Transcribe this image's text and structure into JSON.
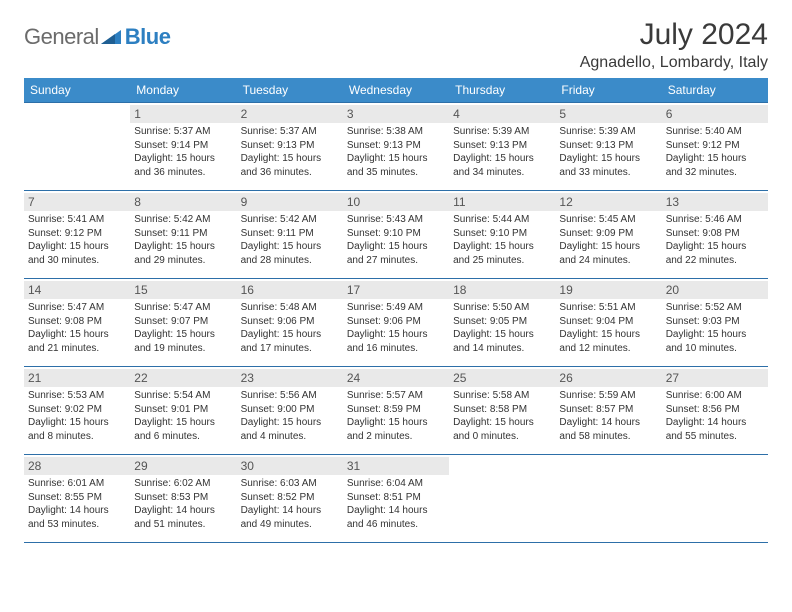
{
  "logo": {
    "text1": "General",
    "text2": "Blue"
  },
  "title": "July 2024",
  "location": "Agnadello, Lombardy, Italy",
  "colors": {
    "header_bg": "#3b8bc9",
    "header_text": "#ffffff",
    "border": "#2d6fa8",
    "daynum_bg": "#e9e9e9",
    "body_text": "#333333",
    "logo_gray": "#6b6b6b",
    "logo_blue": "#2d7fc1"
  },
  "weekdays": [
    "Sunday",
    "Monday",
    "Tuesday",
    "Wednesday",
    "Thursday",
    "Friday",
    "Saturday"
  ],
  "grid": [
    [
      {
        "day": "",
        "sunrise": "",
        "sunset": "",
        "daylight": ""
      },
      {
        "day": "1",
        "sunrise": "Sunrise: 5:37 AM",
        "sunset": "Sunset: 9:14 PM",
        "daylight": "Daylight: 15 hours and 36 minutes."
      },
      {
        "day": "2",
        "sunrise": "Sunrise: 5:37 AM",
        "sunset": "Sunset: 9:13 PM",
        "daylight": "Daylight: 15 hours and 36 minutes."
      },
      {
        "day": "3",
        "sunrise": "Sunrise: 5:38 AM",
        "sunset": "Sunset: 9:13 PM",
        "daylight": "Daylight: 15 hours and 35 minutes."
      },
      {
        "day": "4",
        "sunrise": "Sunrise: 5:39 AM",
        "sunset": "Sunset: 9:13 PM",
        "daylight": "Daylight: 15 hours and 34 minutes."
      },
      {
        "day": "5",
        "sunrise": "Sunrise: 5:39 AM",
        "sunset": "Sunset: 9:13 PM",
        "daylight": "Daylight: 15 hours and 33 minutes."
      },
      {
        "day": "6",
        "sunrise": "Sunrise: 5:40 AM",
        "sunset": "Sunset: 9:12 PM",
        "daylight": "Daylight: 15 hours and 32 minutes."
      }
    ],
    [
      {
        "day": "7",
        "sunrise": "Sunrise: 5:41 AM",
        "sunset": "Sunset: 9:12 PM",
        "daylight": "Daylight: 15 hours and 30 minutes."
      },
      {
        "day": "8",
        "sunrise": "Sunrise: 5:42 AM",
        "sunset": "Sunset: 9:11 PM",
        "daylight": "Daylight: 15 hours and 29 minutes."
      },
      {
        "day": "9",
        "sunrise": "Sunrise: 5:42 AM",
        "sunset": "Sunset: 9:11 PM",
        "daylight": "Daylight: 15 hours and 28 minutes."
      },
      {
        "day": "10",
        "sunrise": "Sunrise: 5:43 AM",
        "sunset": "Sunset: 9:10 PM",
        "daylight": "Daylight: 15 hours and 27 minutes."
      },
      {
        "day": "11",
        "sunrise": "Sunrise: 5:44 AM",
        "sunset": "Sunset: 9:10 PM",
        "daylight": "Daylight: 15 hours and 25 minutes."
      },
      {
        "day": "12",
        "sunrise": "Sunrise: 5:45 AM",
        "sunset": "Sunset: 9:09 PM",
        "daylight": "Daylight: 15 hours and 24 minutes."
      },
      {
        "day": "13",
        "sunrise": "Sunrise: 5:46 AM",
        "sunset": "Sunset: 9:08 PM",
        "daylight": "Daylight: 15 hours and 22 minutes."
      }
    ],
    [
      {
        "day": "14",
        "sunrise": "Sunrise: 5:47 AM",
        "sunset": "Sunset: 9:08 PM",
        "daylight": "Daylight: 15 hours and 21 minutes."
      },
      {
        "day": "15",
        "sunrise": "Sunrise: 5:47 AM",
        "sunset": "Sunset: 9:07 PM",
        "daylight": "Daylight: 15 hours and 19 minutes."
      },
      {
        "day": "16",
        "sunrise": "Sunrise: 5:48 AM",
        "sunset": "Sunset: 9:06 PM",
        "daylight": "Daylight: 15 hours and 17 minutes."
      },
      {
        "day": "17",
        "sunrise": "Sunrise: 5:49 AM",
        "sunset": "Sunset: 9:06 PM",
        "daylight": "Daylight: 15 hours and 16 minutes."
      },
      {
        "day": "18",
        "sunrise": "Sunrise: 5:50 AM",
        "sunset": "Sunset: 9:05 PM",
        "daylight": "Daylight: 15 hours and 14 minutes."
      },
      {
        "day": "19",
        "sunrise": "Sunrise: 5:51 AM",
        "sunset": "Sunset: 9:04 PM",
        "daylight": "Daylight: 15 hours and 12 minutes."
      },
      {
        "day": "20",
        "sunrise": "Sunrise: 5:52 AM",
        "sunset": "Sunset: 9:03 PM",
        "daylight": "Daylight: 15 hours and 10 minutes."
      }
    ],
    [
      {
        "day": "21",
        "sunrise": "Sunrise: 5:53 AM",
        "sunset": "Sunset: 9:02 PM",
        "daylight": "Daylight: 15 hours and 8 minutes."
      },
      {
        "day": "22",
        "sunrise": "Sunrise: 5:54 AM",
        "sunset": "Sunset: 9:01 PM",
        "daylight": "Daylight: 15 hours and 6 minutes."
      },
      {
        "day": "23",
        "sunrise": "Sunrise: 5:56 AM",
        "sunset": "Sunset: 9:00 PM",
        "daylight": "Daylight: 15 hours and 4 minutes."
      },
      {
        "day": "24",
        "sunrise": "Sunrise: 5:57 AM",
        "sunset": "Sunset: 8:59 PM",
        "daylight": "Daylight: 15 hours and 2 minutes."
      },
      {
        "day": "25",
        "sunrise": "Sunrise: 5:58 AM",
        "sunset": "Sunset: 8:58 PM",
        "daylight": "Daylight: 15 hours and 0 minutes."
      },
      {
        "day": "26",
        "sunrise": "Sunrise: 5:59 AM",
        "sunset": "Sunset: 8:57 PM",
        "daylight": "Daylight: 14 hours and 58 minutes."
      },
      {
        "day": "27",
        "sunrise": "Sunrise: 6:00 AM",
        "sunset": "Sunset: 8:56 PM",
        "daylight": "Daylight: 14 hours and 55 minutes."
      }
    ],
    [
      {
        "day": "28",
        "sunrise": "Sunrise: 6:01 AM",
        "sunset": "Sunset: 8:55 PM",
        "daylight": "Daylight: 14 hours and 53 minutes."
      },
      {
        "day": "29",
        "sunrise": "Sunrise: 6:02 AM",
        "sunset": "Sunset: 8:53 PM",
        "daylight": "Daylight: 14 hours and 51 minutes."
      },
      {
        "day": "30",
        "sunrise": "Sunrise: 6:03 AM",
        "sunset": "Sunset: 8:52 PM",
        "daylight": "Daylight: 14 hours and 49 minutes."
      },
      {
        "day": "31",
        "sunrise": "Sunrise: 6:04 AM",
        "sunset": "Sunset: 8:51 PM",
        "daylight": "Daylight: 14 hours and 46 minutes."
      },
      {
        "day": "",
        "sunrise": "",
        "sunset": "",
        "daylight": ""
      },
      {
        "day": "",
        "sunrise": "",
        "sunset": "",
        "daylight": ""
      },
      {
        "day": "",
        "sunrise": "",
        "sunset": "",
        "daylight": ""
      }
    ]
  ]
}
